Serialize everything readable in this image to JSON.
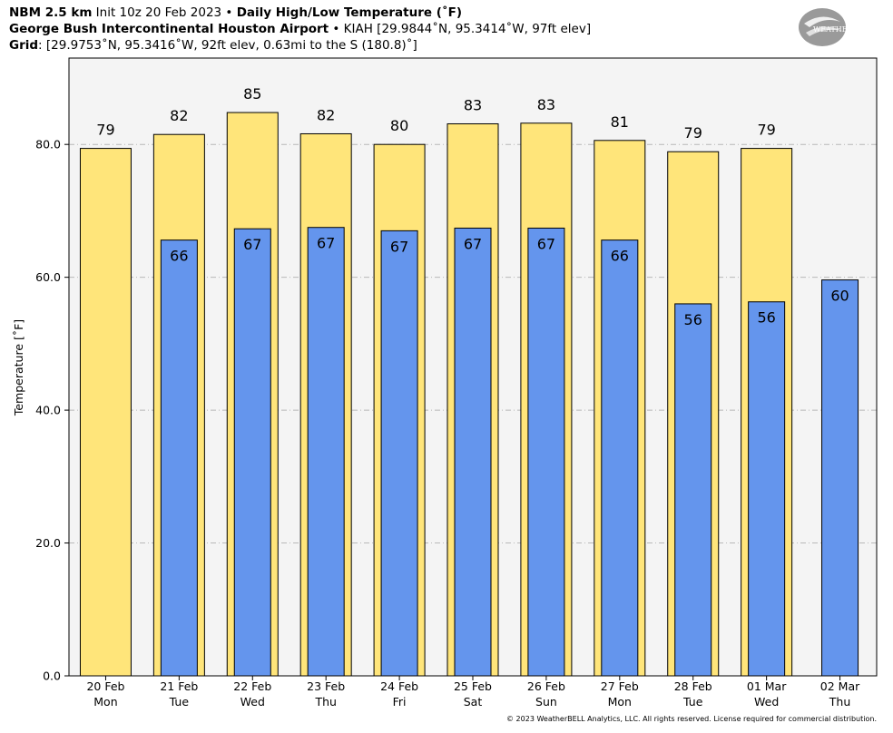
{
  "header": {
    "line1_bold_a": "NBM 2.5 km",
    "line1_plain": " Init 10z 20 Feb 2023 • ",
    "line1_bold_b": "Daily High/Low Temperature (˚F)",
    "line2_bold": "George Bush Intercontinental Houston Airport",
    "line2_plain": " • KIAH [29.9844˚N, 95.3414˚W, 97ft elev]",
    "line3_bold": "Grid",
    "line3_plain": ": [29.9753˚N, 95.3416˚W, 92ft elev, 0.63mi to the S (180.8)˚]"
  },
  "logo": {
    "text_a": "WEATHER",
    "text_b": "BELL",
    "sub": "Analytics LLC"
  },
  "footer": {
    "text": "© 2023 WeatherBELL Analytics, LLC. All rights reserved. License required for commercial distribution."
  },
  "colors": {
    "high": "#ffe57a",
    "low": "#6495ed",
    "plot_bg": "#f4f4f4",
    "grid": "#b8b8b8"
  },
  "chart_data": {
    "type": "bar",
    "title": "Daily High/Low Temperature (˚F)",
    "ylabel": "Temperature [˚F]",
    "ylim": [
      0,
      93
    ],
    "yticks": [
      "0.0",
      "20.0",
      "40.0",
      "60.0",
      "80.0"
    ],
    "ytick_values": [
      0,
      20,
      40,
      60,
      80
    ],
    "grid": true,
    "categories": [
      [
        "20 Feb",
        "Mon"
      ],
      [
        "21 Feb",
        "Tue"
      ],
      [
        "22 Feb",
        "Wed"
      ],
      [
        "23 Feb",
        "Thu"
      ],
      [
        "24 Feb",
        "Fri"
      ],
      [
        "25 Feb",
        "Sat"
      ],
      [
        "26 Feb",
        "Sun"
      ],
      [
        "27 Feb",
        "Mon"
      ],
      [
        "28 Feb",
        "Tue"
      ],
      [
        "01 Mar",
        "Wed"
      ],
      [
        "02 Mar",
        "Thu"
      ]
    ],
    "series": [
      {
        "kind": "high",
        "values": [
          79.4,
          81.5,
          84.8,
          81.6,
          80.0,
          83.1,
          83.2,
          80.6,
          78.9,
          79.4,
          null
        ],
        "labels": [
          "79",
          "82",
          "85",
          "82",
          "80",
          "83",
          "83",
          "81",
          "79",
          "79",
          null
        ]
      },
      {
        "kind": "low",
        "values": [
          null,
          65.6,
          67.3,
          67.5,
          67.0,
          67.4,
          67.4,
          65.6,
          56.0,
          56.3,
          59.6
        ],
        "labels": [
          null,
          "66",
          "67",
          "67",
          "67",
          "67",
          "67",
          "66",
          "56",
          "56",
          "60"
        ]
      }
    ]
  }
}
